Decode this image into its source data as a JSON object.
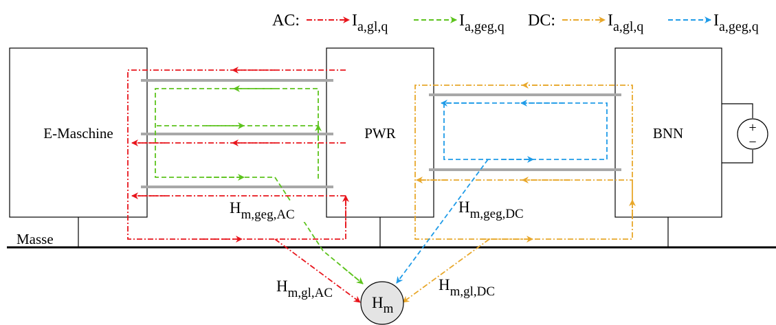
{
  "legend": {
    "ac_label": "AC:",
    "dc_label": "DC:",
    "i_base": "I",
    "sub_gl": "a,gl,q",
    "sub_geg": "a,geg,q"
  },
  "blocks": {
    "emaschine": "E-Maschine",
    "pwr": "PWR",
    "bnn": "BNN",
    "masse": "Masse",
    "plus": "+",
    "minus": "−"
  },
  "labels": {
    "h_base": "H",
    "geg_ac_sub": "m,geg,AC",
    "geg_dc_sub": "m,geg,DC",
    "gl_ac_sub": "m,gl,AC",
    "gl_dc_sub": "m,gl,DC",
    "hm_sub": "m"
  },
  "colors": {
    "ac_gl": "#e8141b",
    "ac_geg": "#5cc31c",
    "dc_gl": "#e8a72a",
    "dc_geg": "#1e9be8",
    "conductor": "#a8a8a8",
    "hm_fill": "#e4e4e4"
  }
}
